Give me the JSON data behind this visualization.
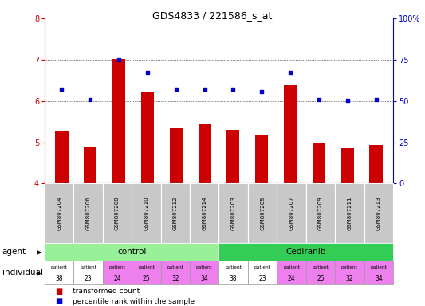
{
  "title": "GDS4833 / 221586_s_at",
  "samples": [
    "GSM807204",
    "GSM807206",
    "GSM807208",
    "GSM807210",
    "GSM807212",
    "GSM807214",
    "GSM807203",
    "GSM807205",
    "GSM807207",
    "GSM807209",
    "GSM807211",
    "GSM807213"
  ],
  "bar_values": [
    5.27,
    4.87,
    7.01,
    6.22,
    5.33,
    5.45,
    5.3,
    5.18,
    6.38,
    5.0,
    4.85,
    4.93
  ],
  "scatter_values": [
    6.28,
    6.04,
    7.0,
    6.68,
    6.28,
    6.28,
    6.28,
    6.22,
    6.69,
    6.04,
    6.01,
    6.04
  ],
  "bar_color": "#cc0000",
  "scatter_color": "#0000cc",
  "ylim": [
    4,
    8
  ],
  "yticks_left": [
    4,
    5,
    6,
    7,
    8
  ],
  "ytick_labels_right": [
    "0",
    "25",
    "50",
    "75",
    "100%"
  ],
  "agent_control_label": "control",
  "agent_cediranib_label": "Cediranib",
  "agent_row_label": "agent",
  "individual_row_label": "individual",
  "patient_numbers": [
    "38",
    "23",
    "24",
    "25",
    "32",
    "34",
    "38",
    "23",
    "24",
    "25",
    "32",
    "34"
  ],
  "legend_bar_label": "transformed count",
  "legend_scatter_label": "percentile rank within the sample",
  "agent_control_color": "#98f098",
  "agent_cediranib_color": "#33cc55",
  "patient_white_color": "#ffffff",
  "patient_pink_color": "#ee80ee",
  "sample_bg_color": "#c8c8c8",
  "left_axis_color": "#cc0000",
  "right_axis_color": "#0000cc"
}
